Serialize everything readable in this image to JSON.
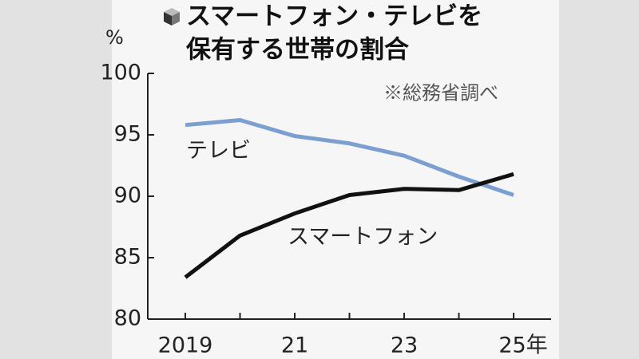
{
  "chart_data": {
    "type": "line",
    "title": [
      "スマートフォン・テレビを",
      "保有する世帯の割合"
    ],
    "y_unit": "%",
    "note": "※総務省調べ",
    "categories": [
      "2019",
      null,
      "21",
      null,
      "23",
      null,
      "25年"
    ],
    "series": [
      {
        "name": "テレビ",
        "color": "#7b9fd1",
        "values": [
          95.8,
          96.2,
          94.9,
          94.3,
          93.3,
          91.6,
          90.1
        ]
      },
      {
        "name": "スマートフォン",
        "color": "#111111",
        "values": [
          83.4,
          86.8,
          88.6,
          90.1,
          90.6,
          90.5,
          91.8
        ]
      }
    ],
    "ylim": [
      80,
      100
    ],
    "yticks": [
      80,
      85,
      90,
      95,
      100
    ],
    "grid": false
  }
}
